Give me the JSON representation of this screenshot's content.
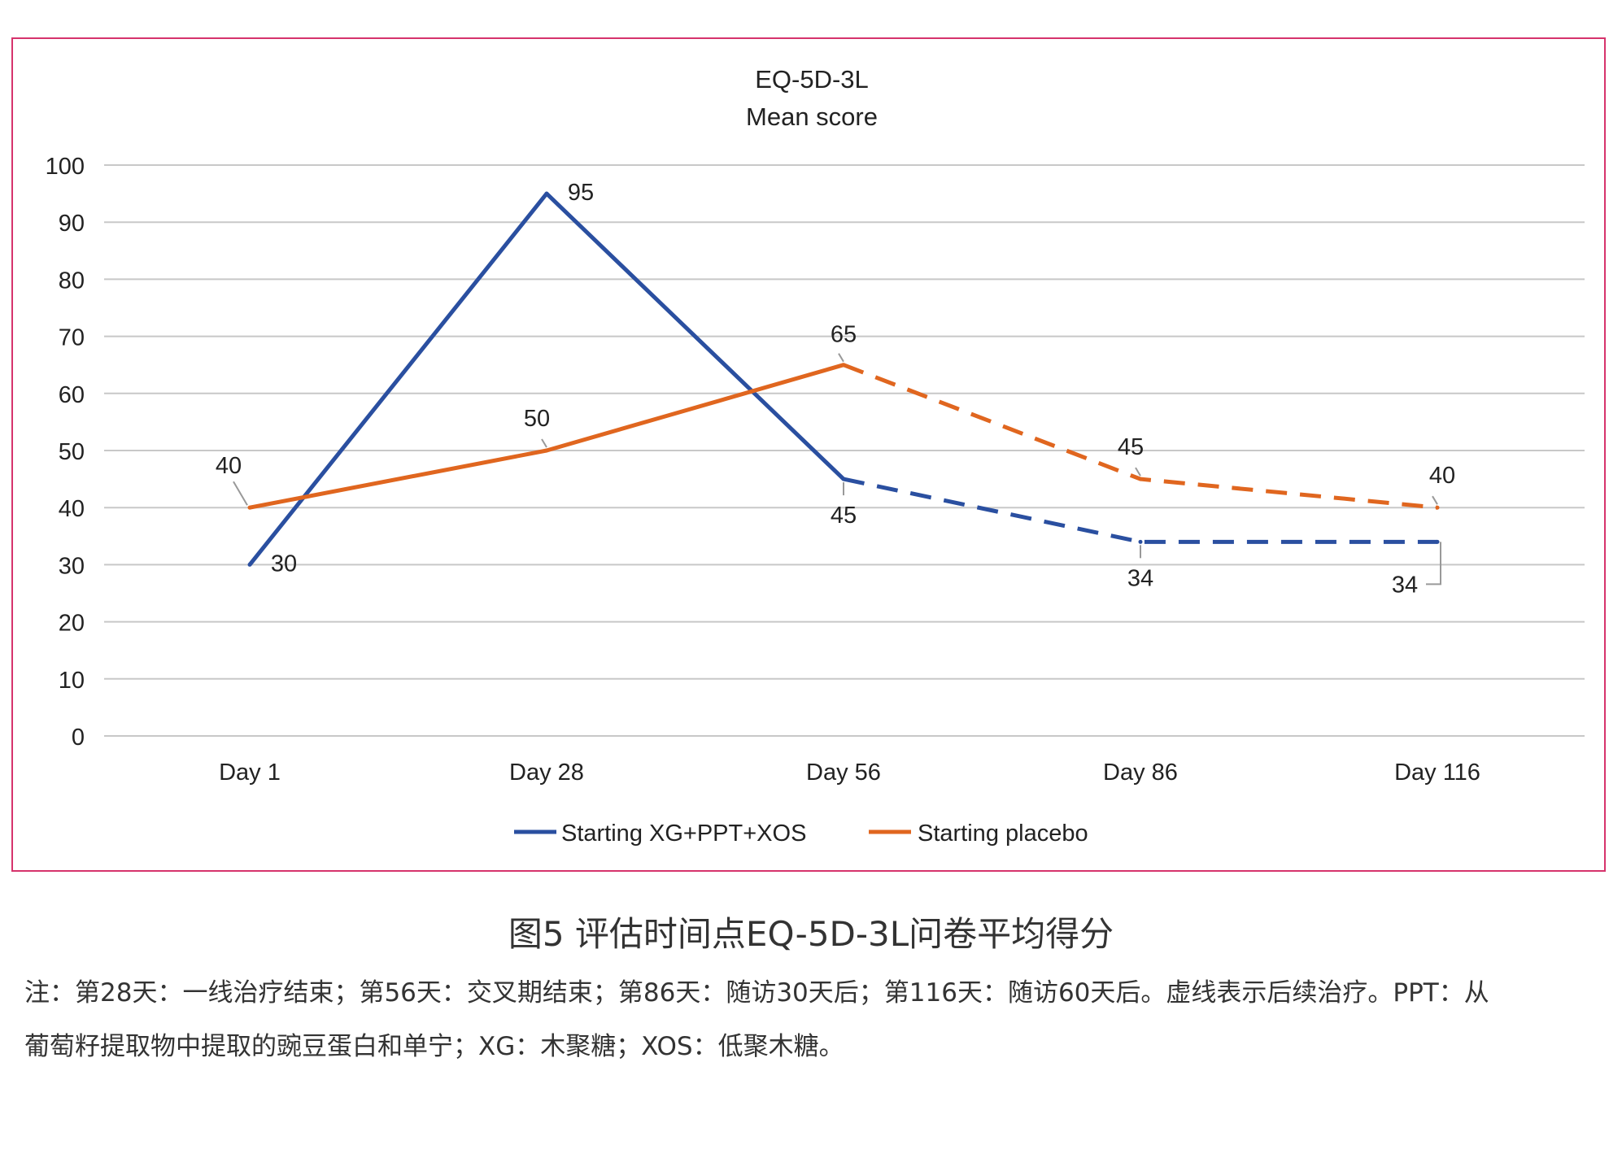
{
  "chart_data": {
    "type": "line",
    "title": "EQ-5D-3L",
    "subtitle": "Mean score",
    "categories": [
      "Day 1",
      "Day 28",
      "Day 56",
      "Day 86",
      "Day 116"
    ],
    "ylim": [
      0,
      100
    ],
    "yticks": [
      0,
      10,
      20,
      30,
      40,
      50,
      60,
      70,
      80,
      90,
      100
    ],
    "grid": true,
    "legend_position": "bottom",
    "series": [
      {
        "name": "Starting XG+PPT+XOS",
        "color": "#2a4fa0",
        "values": [
          30,
          95,
          45,
          34,
          34
        ],
        "dashed_from_index": 2
      },
      {
        "name": "Starting placebo",
        "color": "#e0661f",
        "values": [
          40,
          50,
          65,
          45,
          40
        ],
        "dashed_from_index": 2
      }
    ],
    "data_labels": [
      {
        "series": 0,
        "index": 0,
        "text": "30",
        "placement": "right"
      },
      {
        "series": 0,
        "index": 1,
        "text": "95",
        "placement": "right"
      },
      {
        "series": 0,
        "index": 2,
        "text": "45",
        "placement": "below"
      },
      {
        "series": 0,
        "index": 3,
        "text": "34",
        "placement": "below"
      },
      {
        "series": 0,
        "index": 4,
        "text": "34",
        "placement": "below-left"
      },
      {
        "series": 1,
        "index": 0,
        "text": "40",
        "placement": "above-left"
      },
      {
        "series": 1,
        "index": 1,
        "text": "50",
        "placement": "above"
      },
      {
        "series": 1,
        "index": 2,
        "text": "65",
        "placement": "above"
      },
      {
        "series": 1,
        "index": 3,
        "text": "45",
        "placement": "above"
      },
      {
        "series": 1,
        "index": 4,
        "text": "40",
        "placement": "above"
      }
    ]
  },
  "figure": {
    "caption": "图5 评估时间点EQ-5D-3L问卷平均得分",
    "note_line1": "注：第28天：一线治疗结束；第56天：交叉期结束；第86天：随访30天后；第116天：随访60天后。虚线表示后续治疗。PPT：从",
    "note_line2": "葡萄籽提取物中提取的豌豆蛋白和单宁；XG：木聚糖；XOS：低聚木糖。"
  },
  "colors": {
    "frame": "#d6336c",
    "grid": "#c8c8c8",
    "text": "#222222"
  }
}
